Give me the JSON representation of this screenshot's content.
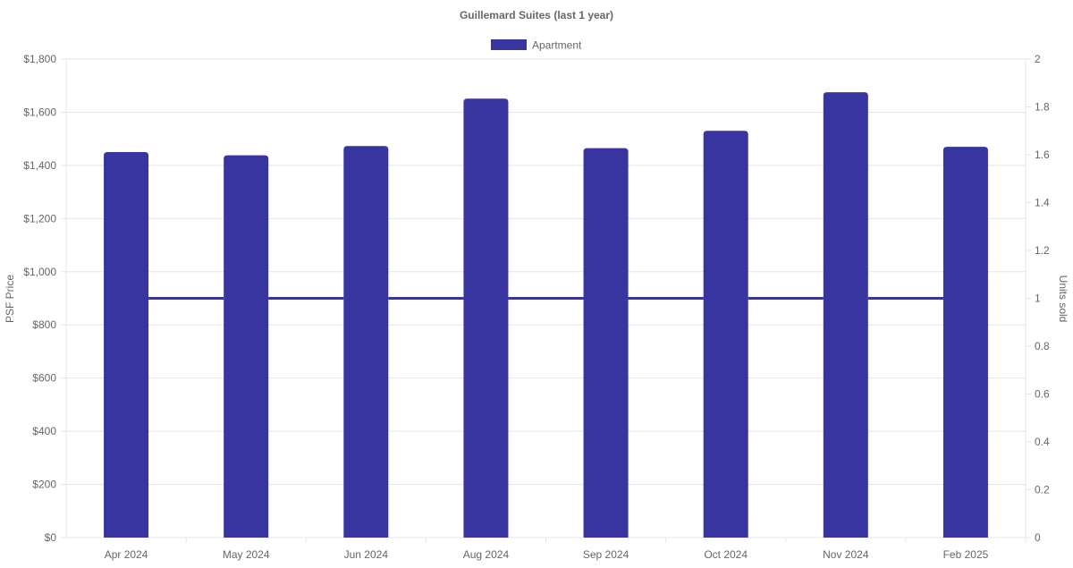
{
  "chart_data": {
    "type": "bar",
    "title": "Guillemard Suites (last 1 year)",
    "legend": {
      "position": "top",
      "entries": [
        "Apartment"
      ]
    },
    "categories": [
      "Apr 2024",
      "May 2024",
      "Jun 2024",
      "Aug 2024",
      "Sep 2024",
      "Oct 2024",
      "Nov 2024",
      "Feb 2025"
    ],
    "series": [
      {
        "name": "Apartment",
        "kind": "bar",
        "axis": "left",
        "values": [
          1450,
          1438,
          1473,
          1651,
          1465,
          1530,
          1675,
          1470
        ]
      },
      {
        "name": "Apartment",
        "kind": "line",
        "axis": "right",
        "values": [
          1,
          1,
          1,
          1,
          1,
          1,
          1,
          1
        ]
      }
    ],
    "ylabel": "PSF Price",
    "y2label": "Units sold",
    "ylim": [
      0,
      1800
    ],
    "y2lim": [
      0,
      2
    ],
    "yticks": [
      "$0",
      "$200",
      "$400",
      "$600",
      "$800",
      "$1,000",
      "$1,200",
      "$1,400",
      "$1,600",
      "$1,800"
    ],
    "y2ticks": [
      "0",
      "0.2",
      "0.4",
      "0.6",
      "0.8",
      "1",
      "1.2",
      "1.4",
      "1.6",
      "1.8",
      "2"
    ],
    "grid": true,
    "colors": {
      "series": "#3834a0",
      "grid": "#e5e5e5",
      "text": "#666666",
      "title": "#666666"
    }
  }
}
